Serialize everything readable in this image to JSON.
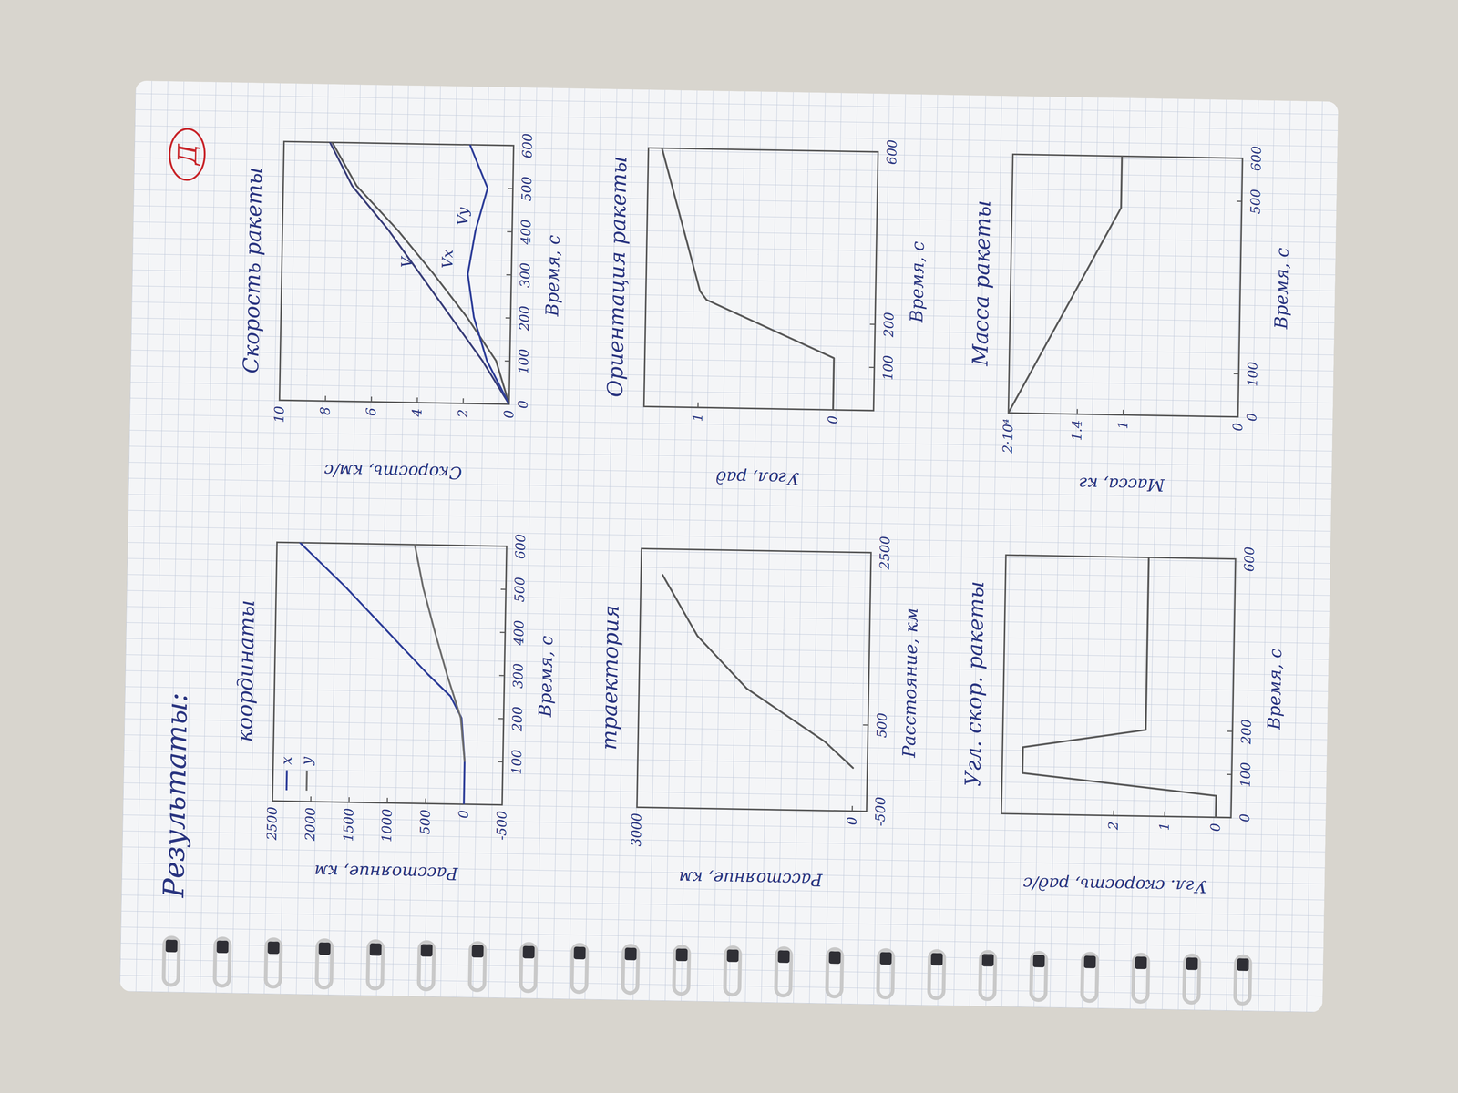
{
  "header": {
    "title": "Результаты:",
    "mark": "Д"
  },
  "chart_data": [
    {
      "type": "line",
      "title": "координаты",
      "x_label": "Время, с",
      "y_label": "Расстояние, км",
      "xlim": [
        0,
        600
      ],
      "ylim": [
        -500,
        2500
      ],
      "xticks": [
        100,
        200,
        300,
        400,
        500,
        600
      ],
      "yticks": [
        -500,
        0,
        500,
        1000,
        1500,
        2000,
        2500
      ],
      "legend": "upper left",
      "series": [
        {
          "name": "x",
          "color": "#2f3f99",
          "x": [
            0,
            100,
            200,
            250,
            300,
            400,
            500,
            600
          ],
          "values": [
            0,
            0,
            50,
            200,
            500,
            1050,
            1600,
            2200
          ]
        },
        {
          "name": "y",
          "color": "#6e6e6e",
          "x": [
            100,
            200,
            300,
            400,
            500,
            600
          ],
          "values": [
            0,
            60,
            250,
            420,
            580,
            700
          ]
        }
      ]
    },
    {
      "type": "line",
      "title": "Скорость ракеты",
      "x_label": "Время, с",
      "y_label": "Скорость, км/с",
      "xlim": [
        0,
        600
      ],
      "ylim": [
        0,
        10
      ],
      "xticks": [
        0,
        100,
        200,
        300,
        400,
        500,
        600
      ],
      "yticks": [
        0,
        2,
        4,
        6,
        8,
        10
      ],
      "series": [
        {
          "name": "V",
          "color": "#3a3f7a",
          "x": [
            0,
            100,
            200,
            300,
            400,
            500,
            600
          ],
          "values": [
            0,
            1.2,
            2.6,
            4,
            5.4,
            7,
            8
          ]
        },
        {
          "name": "Vx",
          "color": "#5a5a5a",
          "x": [
            0,
            100,
            200,
            300,
            400,
            500,
            600
          ],
          "values": [
            0,
            0.6,
            1.9,
            3.4,
            5,
            6.8,
            7.9
          ]
        },
        {
          "name": "Vy",
          "color": "#2f3f99",
          "x": [
            0,
            100,
            200,
            300,
            400,
            500,
            600
          ],
          "values": [
            0,
            1,
            1.6,
            1.9,
            1.6,
            1.1,
            1.9
          ]
        }
      ]
    },
    {
      "type": "line",
      "title": "траектория",
      "x_label": "Расстояние, км",
      "y_label": "Расстояние, км",
      "xlim": [
        -500,
        2500
      ],
      "ylim": [
        -200,
        3000
      ],
      "xticks": [
        -500,
        500,
        2500
      ],
      "yticks": [
        0,
        3000
      ],
      "series": [
        {
          "color": "#5a5a5a",
          "x": [
            0,
            300,
            900,
            1500,
            2200
          ],
          "values": [
            0,
            400,
            1500,
            2200,
            2700
          ]
        }
      ]
    },
    {
      "type": "line",
      "title": "Ориентация ракеты",
      "x_label": "Время, с",
      "y_label": "Угол, рад",
      "xlim": [
        0,
        600
      ],
      "ylim": [
        -0.3,
        1.4
      ],
      "xticks": [
        100,
        200,
        600
      ],
      "yticks": [
        0,
        1
      ],
      "series": [
        {
          "color": "#5a5a5a",
          "x": [
            0,
            120,
            250,
            270,
            600
          ],
          "values": [
            0,
            0,
            0.95,
            1,
            1.3
          ]
        }
      ]
    },
    {
      "type": "line",
      "title": "Угл. скор. ракеты",
      "x_label": "Время, с",
      "y_label": "Угл. скорость, рад/с",
      "xlim": [
        0,
        600
      ],
      "ylim": [
        -0.3,
        4.2
      ],
      "xticks": [
        0,
        100,
        200,
        600
      ],
      "yticks": [
        0,
        1,
        2
      ],
      "series": [
        {
          "color": "#5a5a5a",
          "x": [
            0,
            50,
            95,
            155,
            200,
            600
          ],
          "values": [
            0,
            0,
            3.8,
            3.8,
            1.4,
            1.4
          ]
        }
      ]
    },
    {
      "type": "line",
      "title": "Масса ракеты",
      "x_label": "Время, с",
      "y_label": "Масса, кг",
      "xlim": [
        0,
        600
      ],
      "ylim": [
        0,
        2
      ],
      "xticks": [
        0,
        100,
        500,
        600
      ],
      "yticks": [
        0,
        1,
        1.4,
        {
          "value": 2,
          "label": "2·10⁴"
        }
      ],
      "series": [
        {
          "color": "#5a5a5a",
          "x": [
            0,
            480,
            600
          ],
          "values": [
            2,
            1.05,
            1.05
          ]
        }
      ]
    }
  ]
}
